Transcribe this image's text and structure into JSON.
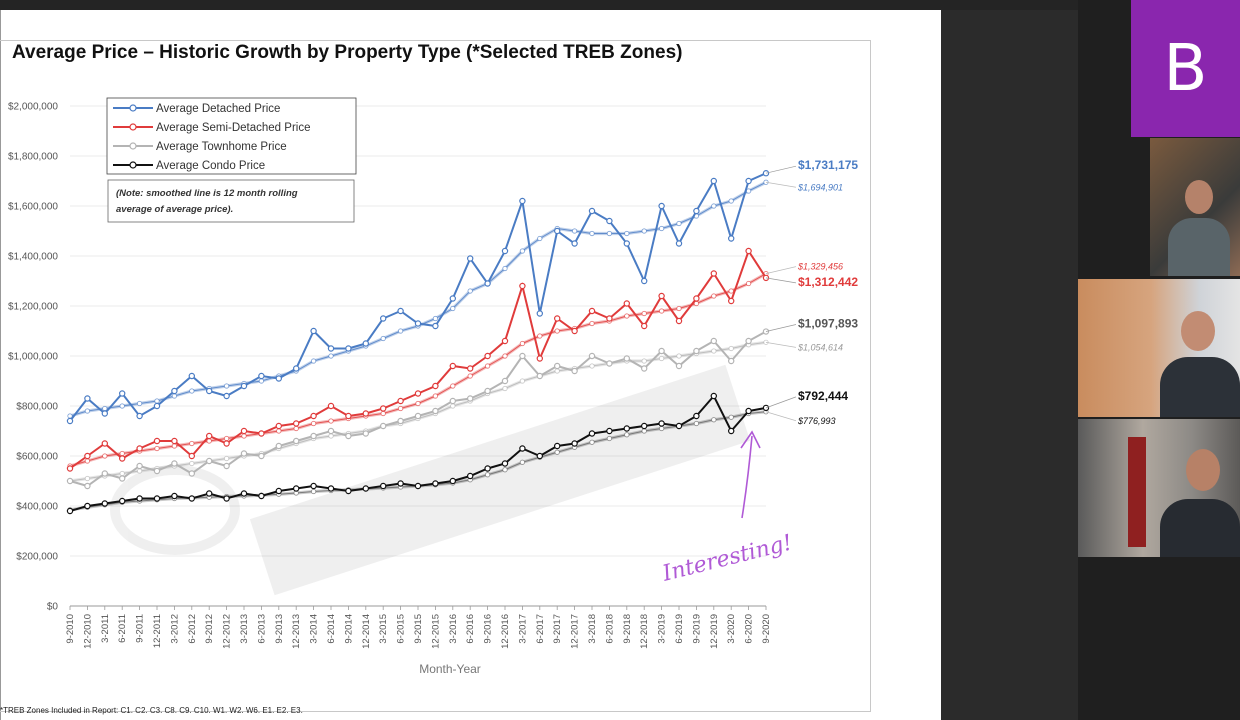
{
  "chart": {
    "title": "Average Price – Historic Growth by Property Type (*Selected TREB Zones)",
    "note_line1": "(Note: smoothed line is 12 month rolling",
    "note_line2": "average of average price).",
    "xlabel": "Month-Year",
    "footnote": "*TREB Zones Included in Report: C1. C2. C3. C8. C9. C10. W1. W2. W6. E1. E2. E3.",
    "annotation": "Interesting!"
  },
  "chart_data": {
    "type": "line",
    "x": [
      "9-2010",
      "12-2010",
      "3-2011",
      "6-2011",
      "9-2011",
      "12-2011",
      "3-2012",
      "6-2012",
      "9-2012",
      "12-2012",
      "3-2013",
      "6-2013",
      "9-2013",
      "12-2013",
      "3-2014",
      "6-2014",
      "9-2014",
      "12-2014",
      "3-2015",
      "6-2015",
      "9-2015",
      "12-2015",
      "3-2016",
      "6-2016",
      "9-2016",
      "12-2016",
      "3-2017",
      "6-2017",
      "9-2017",
      "12-2017",
      "3-2018",
      "6-2018",
      "9-2018",
      "12-2018",
      "3-2019",
      "6-2019",
      "9-2019",
      "12-2019",
      "3-2020",
      "6-2020",
      "9-2020"
    ],
    "ylim": [
      0,
      2000000
    ],
    "yticks": [
      "$0",
      "$200,000",
      "$400,000",
      "$600,000",
      "$800,000",
      "$1,000,000",
      "$1,200,000",
      "$1,400,000",
      "$1,600,000",
      "$1,800,000",
      "$2,000,000"
    ],
    "legend_position": "top-left",
    "series": [
      {
        "name": "Average Detached Price",
        "color": "#4a7cc4",
        "values": [
          740000,
          830000,
          770000,
          850000,
          760000,
          800000,
          860000,
          920000,
          860000,
          840000,
          880000,
          920000,
          910000,
          950000,
          1100000,
          1030000,
          1030000,
          1050000,
          1150000,
          1180000,
          1130000,
          1120000,
          1230000,
          1390000,
          1290000,
          1420000,
          1620000,
          1170000,
          1500000,
          1450000,
          1580000,
          1540000,
          1450000,
          1300000,
          1600000,
          1450000,
          1580000,
          1700000,
          1470000,
          1700000,
          1731175
        ],
        "smoothed": [
          760000,
          780000,
          790000,
          800000,
          810000,
          820000,
          840000,
          860000,
          870000,
          880000,
          890000,
          900000,
          920000,
          940000,
          980000,
          1000000,
          1020000,
          1040000,
          1070000,
          1100000,
          1120000,
          1150000,
          1190000,
          1260000,
          1290000,
          1350000,
          1420000,
          1470000,
          1510000,
          1500000,
          1490000,
          1490000,
          1490000,
          1500000,
          1510000,
          1530000,
          1560000,
          1600000,
          1620000,
          1660000,
          1694901
        ],
        "final_label": "$1,731,175",
        "smoothed_label": "$1,694,901"
      },
      {
        "name": "Average Semi-Detached Price",
        "color": "#e03b3b",
        "values": [
          550000,
          600000,
          650000,
          590000,
          630000,
          660000,
          660000,
          600000,
          680000,
          650000,
          700000,
          690000,
          720000,
          730000,
          760000,
          800000,
          760000,
          770000,
          790000,
          820000,
          850000,
          880000,
          960000,
          950000,
          1000000,
          1060000,
          1280000,
          990000,
          1150000,
          1100000,
          1180000,
          1150000,
          1210000,
          1120000,
          1240000,
          1140000,
          1230000,
          1330000,
          1220000,
          1420000,
          1312442
        ],
        "smoothed": [
          560000,
          580000,
          600000,
          610000,
          620000,
          630000,
          640000,
          650000,
          660000,
          670000,
          680000,
          690000,
          700000,
          710000,
          730000,
          740000,
          750000,
          760000,
          770000,
          790000,
          810000,
          840000,
          880000,
          920000,
          960000,
          1000000,
          1050000,
          1080000,
          1100000,
          1110000,
          1130000,
          1140000,
          1160000,
          1170000,
          1180000,
          1190000,
          1210000,
          1240000,
          1260000,
          1290000,
          1329456
        ],
        "final_label": "$1,312,442",
        "smoothed_label": "$1,329,456"
      },
      {
        "name": "Average Townhome Price",
        "color": "#b4b4b4",
        "values": [
          500000,
          480000,
          530000,
          510000,
          560000,
          540000,
          570000,
          530000,
          580000,
          560000,
          610000,
          600000,
          640000,
          660000,
          680000,
          700000,
          680000,
          690000,
          720000,
          740000,
          760000,
          780000,
          820000,
          830000,
          860000,
          900000,
          1000000,
          920000,
          960000,
          940000,
          1000000,
          970000,
          990000,
          950000,
          1020000,
          960000,
          1020000,
          1060000,
          980000,
          1060000,
          1097893
        ],
        "smoothed": [
          500000,
          510000,
          520000,
          530000,
          540000,
          550000,
          560000,
          570000,
          580000,
          590000,
          600000,
          610000,
          630000,
          650000,
          670000,
          680000,
          690000,
          700000,
          720000,
          730000,
          750000,
          770000,
          800000,
          820000,
          850000,
          870000,
          900000,
          920000,
          940000,
          950000,
          960000,
          970000,
          980000,
          980000,
          990000,
          1000000,
          1010000,
          1020000,
          1030000,
          1045000,
          1054614
        ],
        "final_label": "$1,097,893",
        "smoothed_label": "$1,054,614"
      },
      {
        "name": "Average Condo Price",
        "color": "#111111",
        "values": [
          380000,
          400000,
          410000,
          420000,
          430000,
          430000,
          440000,
          430000,
          450000,
          430000,
          450000,
          440000,
          460000,
          470000,
          480000,
          470000,
          460000,
          470000,
          480000,
          490000,
          480000,
          490000,
          500000,
          520000,
          550000,
          570000,
          630000,
          600000,
          640000,
          650000,
          690000,
          700000,
          710000,
          720000,
          730000,
          720000,
          760000,
          840000,
          700000,
          780000,
          792444
        ],
        "smoothed": [
          385000,
          395000,
          405000,
          415000,
          420000,
          425000,
          430000,
          432000,
          435000,
          438000,
          440000,
          443000,
          447000,
          452000,
          458000,
          462000,
          465000,
          468000,
          472000,
          476000,
          480000,
          485000,
          492000,
          505000,
          525000,
          545000,
          575000,
          595000,
          615000,
          635000,
          655000,
          670000,
          685000,
          700000,
          710000,
          720000,
          730000,
          745000,
          755000,
          770000,
          776993
        ],
        "final_label": "$792,444",
        "smoothed_label": "$776,993"
      }
    ]
  },
  "meeting": {
    "brand_letter": "B"
  }
}
